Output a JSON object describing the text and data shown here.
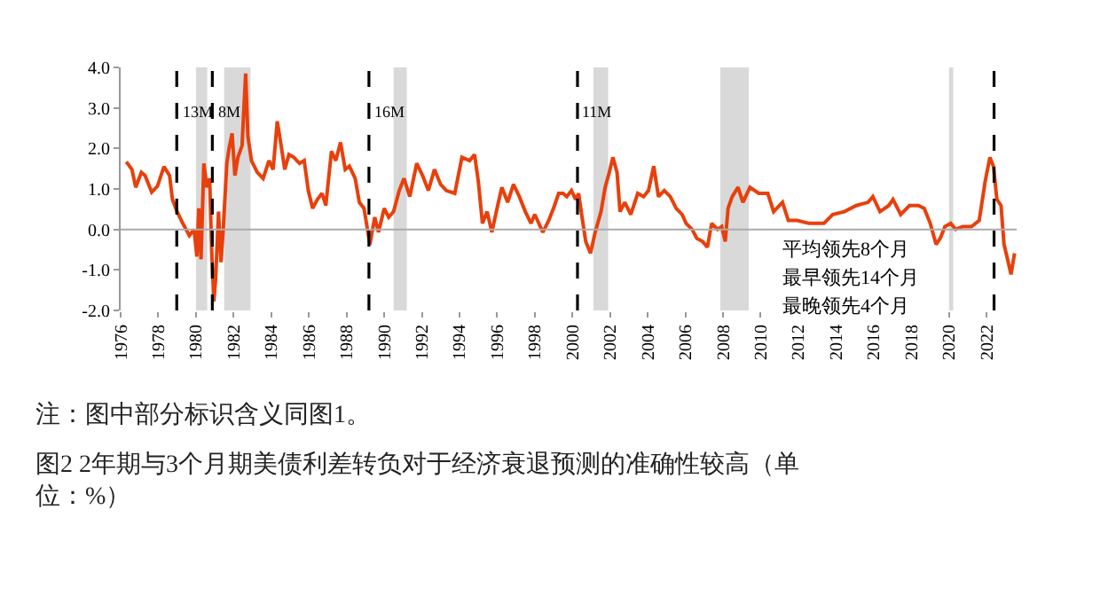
{
  "chart_data": {
    "type": "line",
    "title": "图2 2年期与3个月期美债利差转负对于经济衰退预测的准确性较高（单位：%）",
    "annotations": [
      "平均领先8个月",
      "最早领先14个月",
      "最晚领先4个月",
      "注：图中部分标识含义同图1。"
    ],
    "xlim": [
      1976,
      2023.6
    ],
    "xticks": [
      1976,
      1978,
      1980,
      1982,
      1984,
      1986,
      1988,
      1990,
      1992,
      1994,
      1996,
      1998,
      2000,
      2002,
      2004,
      2006,
      2008,
      2010,
      2012,
      2014,
      2016,
      2018,
      2020,
      2022
    ],
    "ylim": [
      -2.0,
      4.0
    ],
    "yticks": [
      {
        "value": -2,
        "label": "-2.0"
      },
      {
        "value": -1,
        "label": "-1.0"
      },
      {
        "value": 0,
        "label": "0.0"
      },
      {
        "value": 1,
        "label": "1.0"
      },
      {
        "value": 2,
        "label": "2.0"
      },
      {
        "value": 3,
        "label": "3.0"
      },
      {
        "value": 4,
        "label": "4.0"
      }
    ],
    "grid": false,
    "marker": "none",
    "line_style": "solid",
    "ref_lines": [
      {
        "axis": "x",
        "value": 1978.98,
        "label": "13M",
        "color": "#000000",
        "line_style": "dashed"
      },
      {
        "axis": "x",
        "value": 1980.87,
        "label": "8M",
        "color": "#000000",
        "line_style": "dashed"
      },
      {
        "axis": "x",
        "value": 1989.19,
        "label": "16M",
        "color": "#000000",
        "line_style": "dashed"
      },
      {
        "axis": "x",
        "value": 2000.27,
        "label": "11M",
        "color": "#000000",
        "line_style": "dashed"
      },
      {
        "axis": "x",
        "value": 2022.4,
        "label": null,
        "color": "#000000",
        "line_style": "dashed"
      },
      {
        "axis": "y",
        "value": 0,
        "label": null,
        "color": "#aaaaaa",
        "line_style": "solid"
      }
    ],
    "bands": [
      {
        "axis": "x",
        "from": 1980.0,
        "to": 1980.6,
        "color": "#d9d9d9"
      },
      {
        "axis": "x",
        "from": 1981.5,
        "to": 1982.9,
        "color": "#d9d9d9"
      },
      {
        "axis": "x",
        "from": 1990.5,
        "to": 1991.2,
        "color": "#d9d9d9"
      },
      {
        "axis": "x",
        "from": 2001.12,
        "to": 2001.9,
        "color": "#d9d9d9"
      },
      {
        "axis": "x",
        "from": 2007.86,
        "to": 2009.37,
        "color": "#d9d9d9"
      },
      {
        "axis": "x",
        "from": 2020.01,
        "to": 2020.23,
        "color": "#d9d9d9"
      }
    ],
    "series": [
      {
        "color": "#e8400c",
        "x": [
          1976.3,
          1976.6,
          1976.8,
          1977.1,
          1977.3,
          1977.65,
          1977.96,
          1978.3,
          1978.6,
          1978.75,
          1979.0,
          1979.3,
          1979.65,
          1979.9,
          1980.05,
          1980.15,
          1980.27,
          1980.42,
          1980.58,
          1980.73,
          1980.83,
          1980.95,
          1981.05,
          1981.2,
          1981.33,
          1981.45,
          1981.64,
          1981.76,
          1981.92,
          1982.07,
          1982.23,
          1982.45,
          1982.64,
          1982.76,
          1982.95,
          1983.26,
          1983.57,
          1983.88,
          1984.1,
          1984.32,
          1984.5,
          1984.72,
          1984.94,
          1985.2,
          1985.5,
          1985.75,
          1985.97,
          1986.2,
          1986.45,
          1986.7,
          1986.9,
          1987.2,
          1987.43,
          1987.68,
          1987.93,
          1988.15,
          1988.46,
          1988.68,
          1988.93,
          1989.24,
          1989.5,
          1989.7,
          1990.0,
          1990.24,
          1990.5,
          1990.8,
          1991.05,
          1991.36,
          1991.73,
          1992.04,
          1992.35,
          1992.67,
          1993.0,
          1993.3,
          1993.75,
          1994.13,
          1994.54,
          1994.8,
          1995.0,
          1995.22,
          1995.47,
          1995.72,
          1996.03,
          1996.25,
          1996.56,
          1996.87,
          1997.18,
          1997.5,
          1997.8,
          1998.0,
          1998.43,
          1998.74,
          1999.05,
          1999.27,
          1999.5,
          1999.7,
          1999.95,
          2000.17,
          2000.33,
          2000.49,
          2000.71,
          2000.96,
          2001.21,
          2001.52,
          2001.74,
          2001.96,
          2002.15,
          2002.37,
          2002.53,
          2002.78,
          2003.1,
          2003.47,
          2003.78,
          2004.04,
          2004.32,
          2004.57,
          2004.88,
          2005.2,
          2005.51,
          2005.83,
          2006.04,
          2006.36,
          2006.61,
          2006.92,
          2007.17,
          2007.4,
          2007.71,
          2007.93,
          2008.12,
          2008.27,
          2008.49,
          2008.8,
          2009.06,
          2009.43,
          2009.9,
          2010.38,
          2010.69,
          2011.16,
          2011.47,
          2011.94,
          2012.57,
          2013.36,
          2013.83,
          2014.45,
          2015.08,
          2015.71,
          2015.96,
          2016.34,
          2016.81,
          2017.03,
          2017.44,
          2017.91,
          2018.38,
          2018.69,
          2019.01,
          2019.32,
          2019.54,
          2019.79,
          2020.1,
          2020.36,
          2020.73,
          2021.2,
          2021.61,
          2021.93,
          2022.18,
          2022.37,
          2022.55,
          2022.77,
          2022.93,
          2023.12,
          2023.3,
          2023.49
        ],
        "values": [
          1.67,
          1.48,
          1.04,
          1.41,
          1.33,
          0.92,
          1.07,
          1.55,
          1.33,
          0.74,
          0.44,
          0.15,
          -0.15,
          0.0,
          -0.67,
          0.52,
          -0.74,
          1.63,
          1.04,
          1.26,
          -0.44,
          -1.78,
          -1.19,
          0.44,
          -0.81,
          0.0,
          1.63,
          2.0,
          2.37,
          1.33,
          1.78,
          2.07,
          3.85,
          2.3,
          1.7,
          1.41,
          1.26,
          1.7,
          1.48,
          2.67,
          2.15,
          1.48,
          1.85,
          1.78,
          1.63,
          1.7,
          0.96,
          0.52,
          0.74,
          0.89,
          0.59,
          1.93,
          1.7,
          2.15,
          1.48,
          1.56,
          1.26,
          0.67,
          0.52,
          -0.37,
          0.3,
          -0.07,
          0.52,
          0.3,
          0.44,
          0.96,
          1.26,
          0.81,
          1.63,
          1.33,
          0.96,
          1.48,
          1.11,
          0.96,
          0.89,
          1.78,
          1.7,
          1.85,
          1.19,
          0.15,
          0.44,
          -0.07,
          0.59,
          1.04,
          0.67,
          1.11,
          0.81,
          0.44,
          0.15,
          0.37,
          -0.07,
          0.22,
          0.59,
          0.89,
          0.89,
          0.81,
          0.96,
          0.74,
          0.89,
          0.37,
          -0.3,
          -0.59,
          -0.07,
          0.44,
          1.04,
          1.41,
          1.78,
          1.41,
          0.44,
          0.67,
          0.37,
          0.89,
          0.81,
          0.96,
          1.56,
          0.81,
          0.96,
          0.81,
          0.52,
          0.37,
          0.15,
          0.0,
          -0.22,
          -0.3,
          -0.44,
          0.15,
          0.0,
          0.07,
          -0.3,
          0.52,
          0.81,
          1.04,
          0.67,
          1.04,
          0.89,
          0.89,
          0.44,
          0.67,
          0.22,
          0.22,
          0.15,
          0.15,
          0.37,
          0.44,
          0.59,
          0.67,
          0.81,
          0.44,
          0.59,
          0.74,
          0.37,
          0.59,
          0.59,
          0.52,
          0.15,
          -0.37,
          -0.22,
          0.07,
          0.15,
          0.0,
          0.07,
          0.07,
          0.22,
          1.19,
          1.78,
          1.56,
          0.74,
          0.59,
          -0.37,
          -0.74,
          -1.11,
          -0.59
        ]
      }
    ]
  }
}
